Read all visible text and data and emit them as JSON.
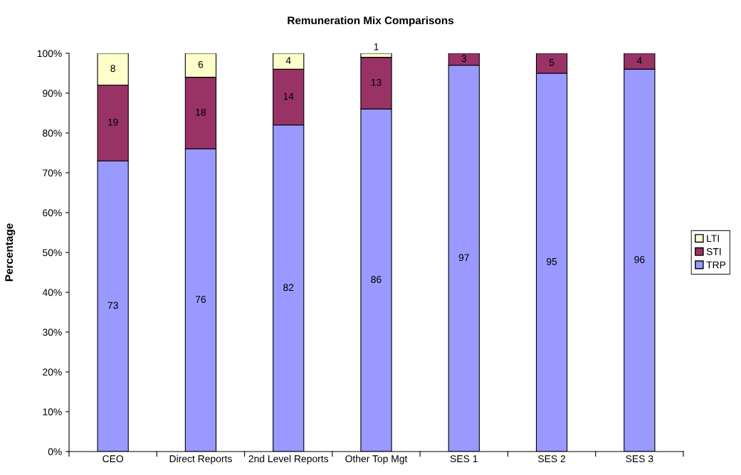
{
  "chart_data": {
    "type": "bar",
    "stacked": true,
    "title": "Remuneration Mix Comparisons",
    "ylabel": "Percentage",
    "categories": [
      "CEO",
      "Direct Reports",
      "2nd Level Reports",
      "Other Top Mgt",
      "SES 1",
      "SES 2",
      "SES 3"
    ],
    "series": [
      {
        "name": "TRP",
        "color": "#9999ff",
        "values": [
          73,
          76,
          82,
          86,
          97,
          95,
          96
        ]
      },
      {
        "name": "STI",
        "color": "#993366",
        "values": [
          19,
          18,
          14,
          13,
          3,
          5,
          4
        ]
      },
      {
        "name": "LTI",
        "color": "#ffffcc",
        "values": [
          8,
          6,
          4,
          1,
          null,
          null,
          null
        ]
      }
    ],
    "ylim": [
      0,
      100
    ],
    "yticks": [
      {
        "value": 0,
        "label": "0%"
      },
      {
        "value": 10,
        "label": "10%"
      },
      {
        "value": 20,
        "label": "20%"
      },
      {
        "value": 30,
        "label": "30%"
      },
      {
        "value": 40,
        "label": "40%"
      },
      {
        "value": 50,
        "label": "50%"
      },
      {
        "value": 60,
        "label": "60%"
      },
      {
        "value": 70,
        "label": "70%"
      },
      {
        "value": 80,
        "label": "80%"
      },
      {
        "value": 90,
        "label": "90%"
      },
      {
        "value": 100,
        "label": "100%"
      }
    ],
    "data_labels": true,
    "legend": "right",
    "grid": false
  }
}
